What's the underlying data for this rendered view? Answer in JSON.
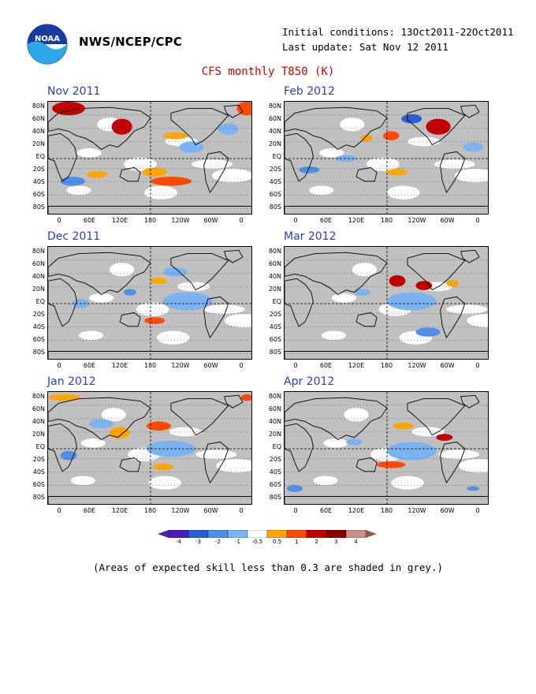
{
  "header": {
    "agency": "NWS/NCEP/CPC",
    "initial_conditions": "Initial conditions: 13Oct2011-22Oct2011",
    "last_update": "Last update: Sat Nov 12 2011",
    "logo_icon": "noaa-logo-icon",
    "logo_text": "NOAA"
  },
  "title": "CFS monthly T850 (K)",
  "lat_labels": [
    "80N",
    "60N",
    "40N",
    "20N",
    "EQ",
    "20S",
    "40S",
    "60S",
    "80S"
  ],
  "lon_labels": [
    "0",
    "60E",
    "120E",
    "180",
    "120W",
    "60W",
    "0"
  ],
  "panels": [
    {
      "title": "Nov 2011"
    },
    {
      "title": "Feb 2012"
    },
    {
      "title": "Dec 2011"
    },
    {
      "title": "Mar 2012"
    },
    {
      "title": "Jan 2012"
    },
    {
      "title": "Apr 2012"
    }
  ],
  "colorbar": {
    "labels": [
      "-4",
      "-3",
      "-2",
      "-1",
      "-0.5",
      "0.5",
      "1",
      "2",
      "3",
      "4"
    ],
    "colors": [
      "#4a1fb8",
      "#2c5fd6",
      "#4f8fe8",
      "#7ab3f0",
      "#ffffff",
      "#ffa500",
      "#ff4a00",
      "#c20000",
      "#8a0000",
      "#c89088"
    ]
  },
  "colors": {
    "skill_mask_grey": "#c0c0c0",
    "title_red": "#d00000",
    "panel_title_blue": "#2a3cd0"
  },
  "footnote": "(Areas of expected skill less than 0.3 are shaded in grey.)"
}
